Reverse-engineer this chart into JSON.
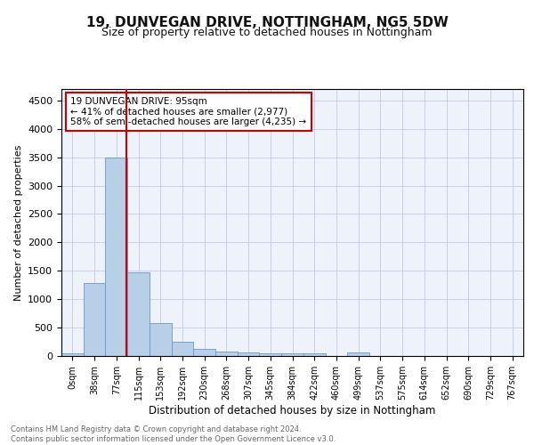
{
  "title1": "19, DUNVEGAN DRIVE, NOTTINGHAM, NG5 5DW",
  "title2": "Size of property relative to detached houses in Nottingham",
  "xlabel": "Distribution of detached houses by size in Nottingham",
  "ylabel": "Number of detached properties",
  "bar_color": "#b8cfe8",
  "bar_edge_color": "#6699cc",
  "bin_labels": [
    "0sqm",
    "38sqm",
    "77sqm",
    "115sqm",
    "153sqm",
    "192sqm",
    "230sqm",
    "268sqm",
    "307sqm",
    "345sqm",
    "384sqm",
    "422sqm",
    "460sqm",
    "499sqm",
    "537sqm",
    "575sqm",
    "614sqm",
    "652sqm",
    "690sqm",
    "729sqm",
    "767sqm"
  ],
  "bar_heights": [
    50,
    1280,
    3500,
    1480,
    580,
    250,
    120,
    80,
    55,
    40,
    40,
    50,
    0,
    60,
    0,
    0,
    0,
    0,
    0,
    0,
    0
  ],
  "annotation_text": "19 DUNVEGAN DRIVE: 95sqm\n← 41% of detached houses are smaller (2,977)\n58% of semi-detached houses are larger (4,235) →",
  "annotation_box_color": "#ffffff",
  "annotation_box_edge_color": "#cc0000",
  "vline_color": "#cc0000",
  "vline_x": 2.47,
  "ylim": [
    0,
    4700
  ],
  "yticks": [
    0,
    500,
    1000,
    1500,
    2000,
    2500,
    3000,
    3500,
    4000,
    4500
  ],
  "footer_text": "Contains HM Land Registry data © Crown copyright and database right 2024.\nContains public sector information licensed under the Open Government Licence v3.0.",
  "background_color": "#eef2fb",
  "grid_color": "#c8d0e8",
  "title1_fontsize": 11,
  "title2_fontsize": 9
}
